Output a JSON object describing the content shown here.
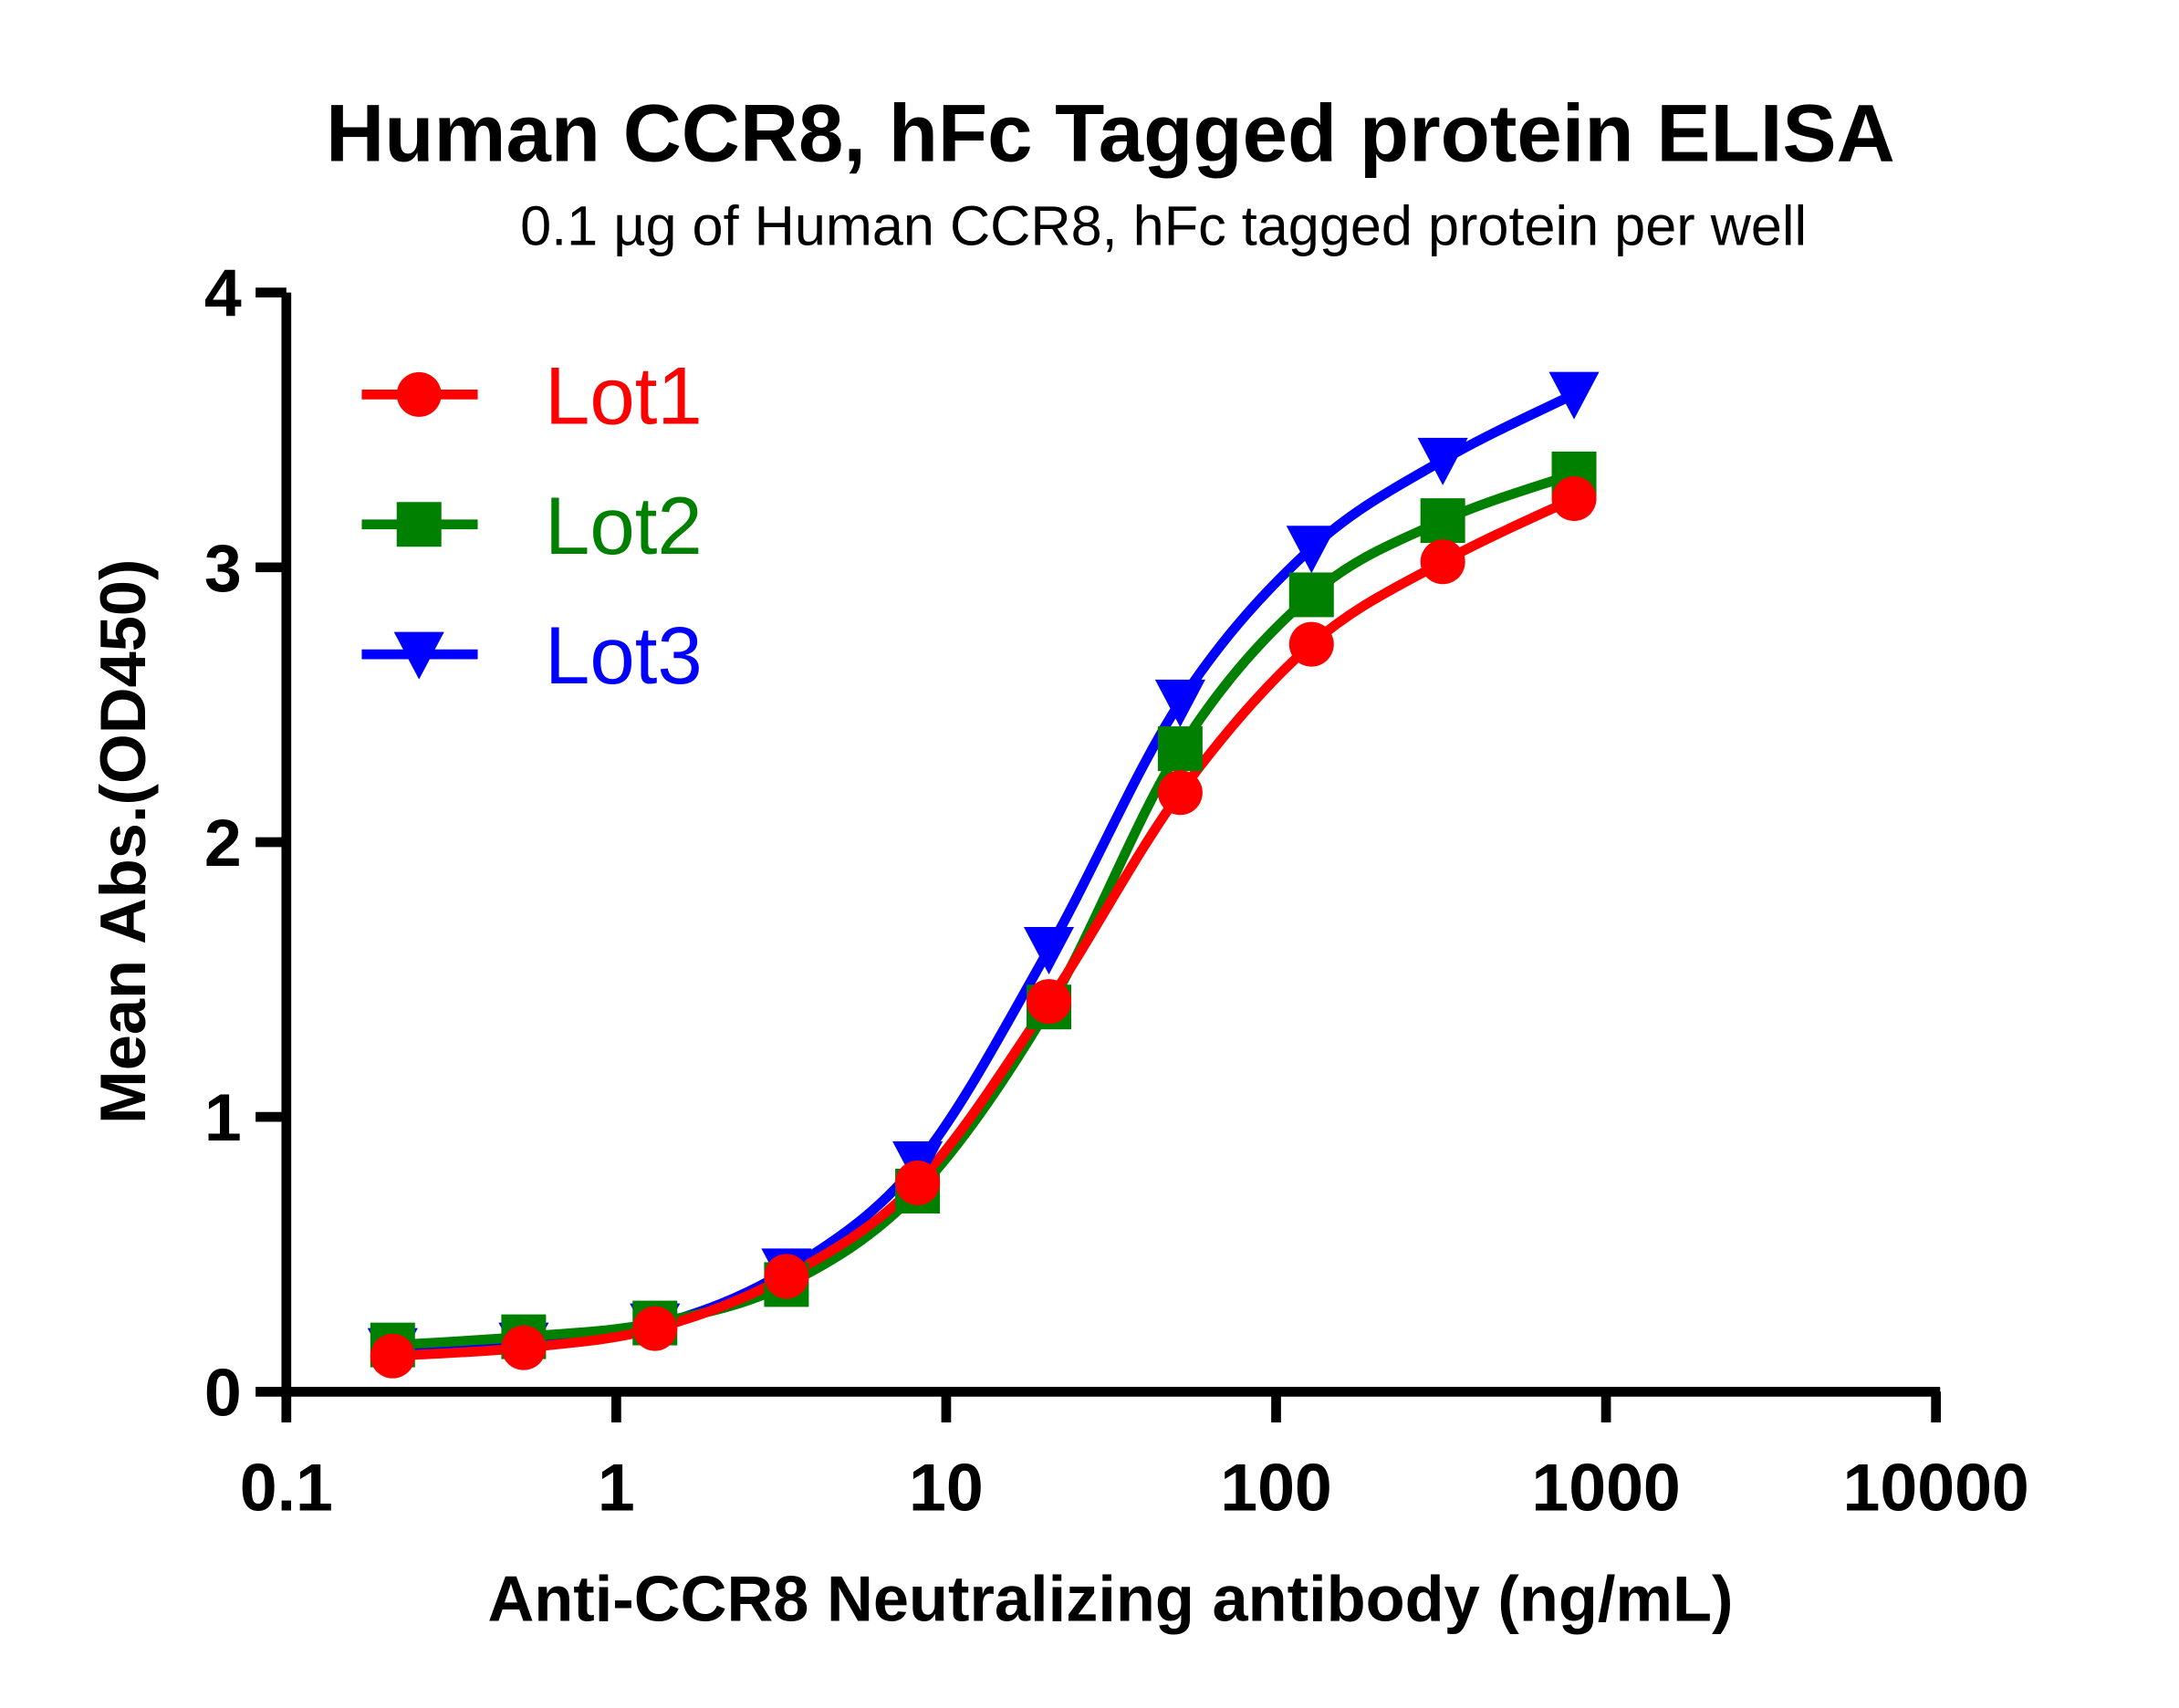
{
  "chart_data": {
    "type": "line",
    "title": "Human CCR8, hFc Tagged protein ELISA",
    "subtitle": "0.1 µg of Human CCR8, hFc tagged protein per well",
    "xlabel": "Anti-CCR8 Neutralizing antibody (ng/mL)",
    "ylabel": "Mean Abs.(OD450)",
    "xscale": "log",
    "xlim": [
      0.1,
      10000
    ],
    "ylim": [
      0,
      4
    ],
    "x_ticks": [
      "0.1",
      "1",
      "10",
      "100",
      "1000",
      "10000"
    ],
    "y_ticks": [
      "0",
      "1",
      "2",
      "3",
      "4"
    ],
    "grid": false,
    "legend_position": "top-left",
    "x": [
      0.21,
      0.524,
      1.31,
      3.28,
      8.19,
      20.48,
      51.2,
      128,
      320,
      800
    ],
    "series": [
      {
        "name": "Lot1",
        "color": "#ff0000",
        "marker": "circle",
        "values": [
          0.13,
          0.16,
          0.23,
          0.42,
          0.76,
          1.42,
          2.18,
          2.72,
          3.02,
          3.25
        ]
      },
      {
        "name": "Lot2",
        "color": "#008000",
        "marker": "square",
        "values": [
          0.17,
          0.2,
          0.25,
          0.39,
          0.73,
          1.4,
          2.34,
          2.9,
          3.17,
          3.34
        ]
      },
      {
        "name": "Lot3",
        "color": "#0000ff",
        "marker": "triangle-down",
        "values": [
          0.15,
          0.17,
          0.24,
          0.44,
          0.83,
          1.61,
          2.51,
          3.07,
          3.39,
          3.63
        ]
      }
    ]
  }
}
